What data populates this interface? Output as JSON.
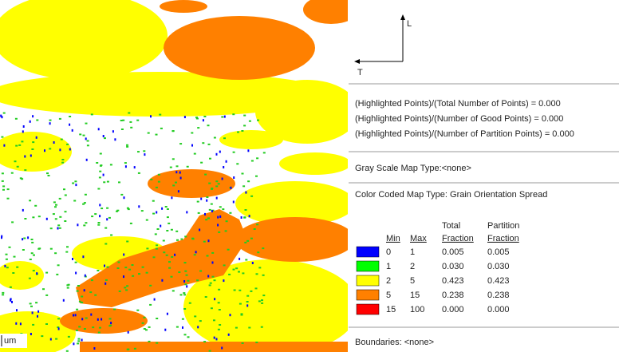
{
  "axes": {
    "vertical": "L",
    "horizontal": "T"
  },
  "scale_label": "um",
  "highlight": [
    "(Highlighted Points)/(Total Number of Points) = 0.000",
    "(Highlighted Points)/(Number of Good Points) = 0.000",
    "(Highlighted Points)/(Number of Partition Points) = 0.000"
  ],
  "gray_scale": "Gray Scale Map Type:<none>",
  "color_coded": "Color Coded Map Type: Grain Orientation Spread",
  "table": {
    "headers": [
      [
        "Min"
      ],
      [
        "Max"
      ],
      [
        "Total",
        "Fraction"
      ],
      [
        "Partition",
        "Fraction"
      ]
    ],
    "rows": [
      {
        "color": "#0000ff",
        "cells": [
          "0",
          "1",
          "0.005",
          "0.005"
        ]
      },
      {
        "color": "#00ff00",
        "cells": [
          "1",
          "2",
          "0.030",
          "0.030"
        ]
      },
      {
        "color": "#ffff00",
        "cells": [
          "2",
          "5",
          "0.423",
          "0.423"
        ]
      },
      {
        "color": "#ff8000",
        "cells": [
          "5",
          "15",
          "0.238",
          "0.238"
        ]
      },
      {
        "color": "#ff0000",
        "cells": [
          "15",
          "100",
          "0.000",
          "0.000"
        ]
      }
    ]
  },
  "boundaries": "Boundaries: <none>"
}
